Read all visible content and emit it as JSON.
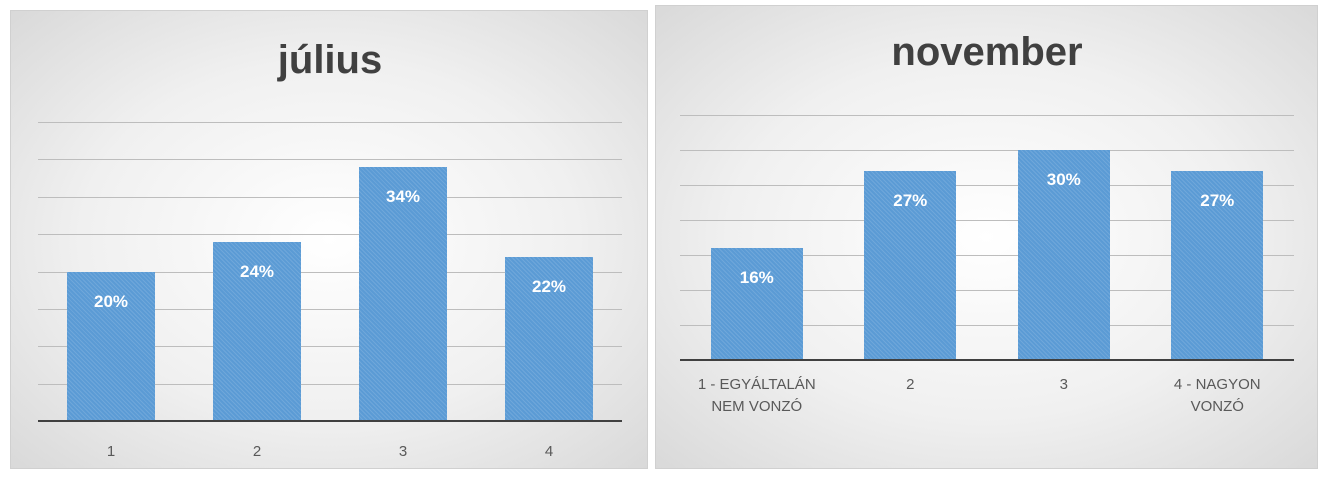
{
  "chart_data": [
    {
      "type": "bar",
      "title": "július",
      "categories": [
        "1",
        "2",
        "3",
        "4"
      ],
      "values": [
        20,
        24,
        34,
        22
      ],
      "value_labels": [
        "20%",
        "24%",
        "34%",
        "22%"
      ],
      "color": "#5b9bd5",
      "ylim": [
        0,
        40
      ],
      "yticks": [
        0,
        5,
        10,
        15,
        20,
        25,
        30,
        35,
        40
      ],
      "grid": true
    },
    {
      "type": "bar",
      "title": "november",
      "categories": [
        "1 - EGYÁLTALÁN NEM VONZÓ",
        "2",
        "3",
        "4 - NAGYON VONZÓ"
      ],
      "values": [
        16,
        27,
        30,
        27
      ],
      "value_labels": [
        "16%",
        "27%",
        "30%",
        "27%"
      ],
      "color": "#5b9bd5",
      "ylim": [
        0,
        35
      ],
      "yticks": [
        0,
        5,
        10,
        15,
        20,
        25,
        30,
        35
      ],
      "grid": true
    }
  ]
}
